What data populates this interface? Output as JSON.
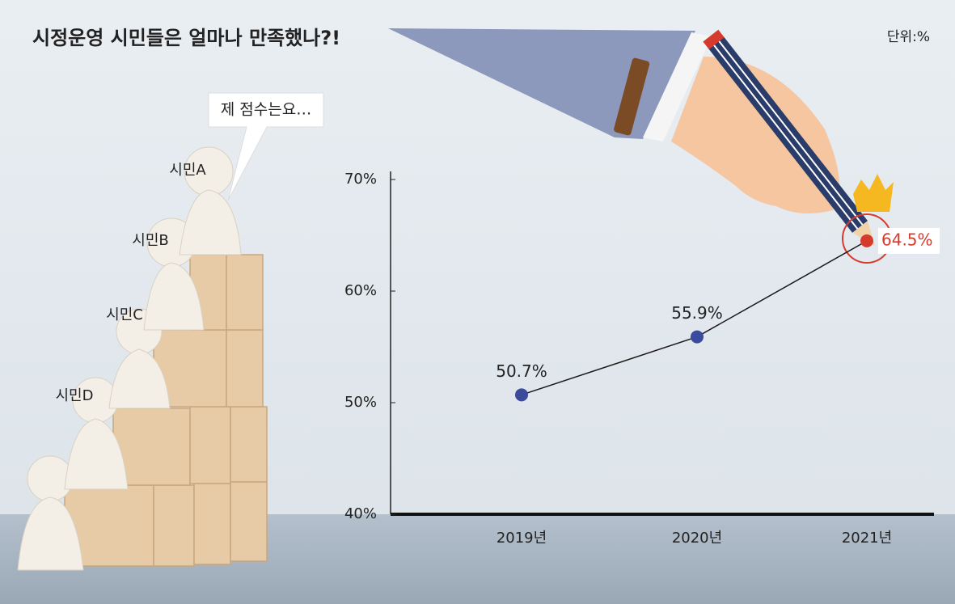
{
  "chart_data": {
    "type": "line",
    "title": "시정운영 시민들은 얼마나 만족했나?!",
    "unit": "단위:%",
    "annotations": [
      "제 점수는요…",
      "시민A",
      "시민B",
      "시민C",
      "시민D"
    ],
    "categories": [
      "2019년",
      "2020년",
      "2021년"
    ],
    "values": [
      50.7,
      55.9,
      64.5
    ],
    "value_labels": [
      "50.7%",
      "55.9%",
      "64.5%"
    ],
    "color": "#1a1a1a",
    "point_colors": [
      "#3b4a9c",
      "#3b4a9c",
      "#d63a2c"
    ],
    "ylim": [
      40,
      70
    ],
    "yticks": [
      {
        "value": 40,
        "label": "40%"
      },
      {
        "value": 50,
        "label": "50%"
      },
      {
        "value": 60,
        "label": "60%"
      },
      {
        "value": 70,
        "label": "70%"
      }
    ]
  }
}
